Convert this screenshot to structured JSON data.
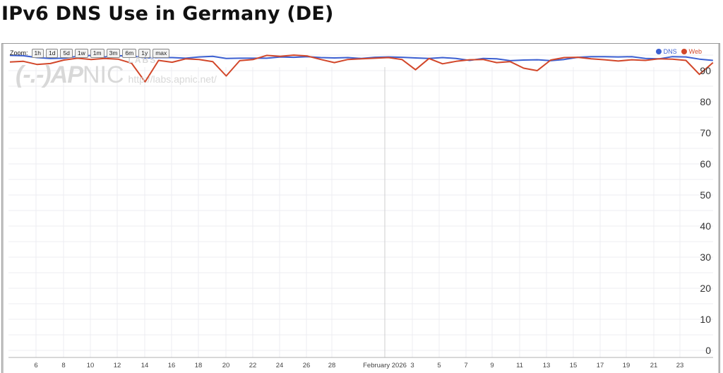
{
  "page": {
    "title": "IPv6 DNS Use in Germany (DE)"
  },
  "zoom_bar": {
    "label": "Zoom:",
    "buttons": [
      "1h",
      "1d",
      "5d",
      "1w",
      "1m",
      "3m",
      "6m",
      "1y",
      "max"
    ]
  },
  "legend": {
    "items": [
      {
        "label": "DNS",
        "color": "#3b5fd1"
      },
      {
        "label": "Web",
        "color": "#d2472a"
      }
    ]
  },
  "watermark": {
    "logo": "(-.-)AP",
    "nic": "NIC",
    "labs": "LABS",
    "url": "http://labs.apnic.net/"
  },
  "colors": {
    "dns": "#3b5fd1",
    "web": "#d2472a",
    "grid": "#ececf2",
    "axis": "#b0b0b0"
  },
  "chart_data": {
    "type": "line",
    "title": "IPv6 DNS Use in Germany (DE)",
    "xlabel": "",
    "ylabel": "",
    "ylim": [
      0,
      100
    ],
    "y_ticks": [
      0,
      10,
      20,
      30,
      40,
      50,
      60,
      70,
      80,
      90
    ],
    "y_axis_position": "right",
    "grid": true,
    "legend_position": "top-right",
    "x_tick_labels": [
      "6",
      "8",
      "10",
      "12",
      "14",
      "16",
      "18",
      "20",
      "22",
      "24",
      "26",
      "28",
      "February 2026",
      "3",
      "5",
      "7",
      "9",
      "11",
      "13",
      "15",
      "17",
      "19",
      "21",
      "23"
    ],
    "x": [
      "Jan 4",
      "Jan 5",
      "Jan 6",
      "Jan 7",
      "Jan 8",
      "Jan 9",
      "Jan 10",
      "Jan 11",
      "Jan 12",
      "Jan 13",
      "Jan 14",
      "Jan 15",
      "Jan 16",
      "Jan 17",
      "Jan 18",
      "Jan 19",
      "Jan 20",
      "Jan 21",
      "Jan 22",
      "Jan 23",
      "Jan 24",
      "Jan 25",
      "Jan 26",
      "Jan 27",
      "Jan 28",
      "Jan 29",
      "Jan 30",
      "Jan 31",
      "Feb 1",
      "Feb 2",
      "Feb 3",
      "Feb 4",
      "Feb 5",
      "Feb 6",
      "Feb 7",
      "Feb 8",
      "Feb 9",
      "Feb 10",
      "Feb 11",
      "Feb 12",
      "Feb 13",
      "Feb 14",
      "Feb 15",
      "Feb 16",
      "Feb 17",
      "Feb 18",
      "Feb 19",
      "Feb 20",
      "Feb 21",
      "Feb 22",
      "Feb 23",
      "Feb 24",
      "Feb 25"
    ],
    "series": [
      {
        "name": "DNS",
        "color": "#3b5fd1",
        "values": [
          94.9,
          94.8,
          94.2,
          93.9,
          94.0,
          94.6,
          94.9,
          94.4,
          94.8,
          94.7,
          94.1,
          94.2,
          94.2,
          94.0,
          94.4,
          94.6,
          93.9,
          94.0,
          94.0,
          94.0,
          94.4,
          94.3,
          94.5,
          94.2,
          94.1,
          94.2,
          93.9,
          94.3,
          94.4,
          94.3,
          94.1,
          93.9,
          94.2,
          93.9,
          93.3,
          93.9,
          93.8,
          93.2,
          93.4,
          93.5,
          93.2,
          93.6,
          94.3,
          94.5,
          94.5,
          94.4,
          94.5,
          93.9,
          93.8,
          94.5,
          94.4,
          93.7,
          93.3
        ]
      },
      {
        "name": "Web",
        "color": "#d2472a",
        "values": [
          92.8,
          93.0,
          92.0,
          92.3,
          93.4,
          94.0,
          93.6,
          93.9,
          93.7,
          92.4,
          86.4,
          93.3,
          92.7,
          93.8,
          93.6,
          92.9,
          88.3,
          93.2,
          93.6,
          94.9,
          94.6,
          95.0,
          94.7,
          93.6,
          92.6,
          93.6,
          93.8,
          94.0,
          94.2,
          93.6,
          90.3,
          93.9,
          92.2,
          93.0,
          93.5,
          93.6,
          92.6,
          92.9,
          90.8,
          90.0,
          93.4,
          94.2,
          94.3,
          93.8,
          93.5,
          93.1,
          93.5,
          93.3,
          93.8,
          93.7,
          93.3,
          88.8,
          92.6
        ]
      }
    ]
  }
}
